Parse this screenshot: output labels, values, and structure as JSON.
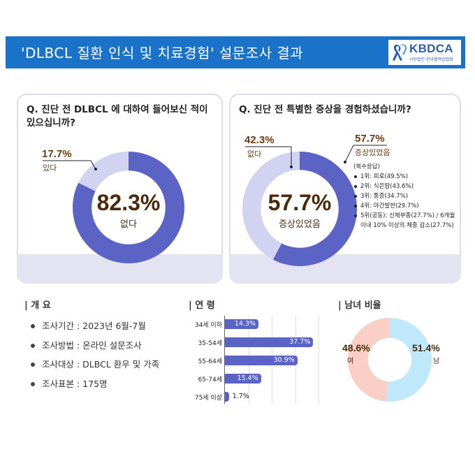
{
  "header": {
    "title": "'DLBCL 질환 인식 및 치료경험' 설문조사 결과"
  },
  "logo": {
    "name": "KBDCA",
    "sub": "사단법인 한국혈액암협회"
  },
  "colors": {
    "header": "#1a73c8",
    "primary": "#5b63c4",
    "secondary": "#d2d3f1",
    "female": "#f9cfc6",
    "male": "#bfe8fb",
    "value_text": "#4b2a0a"
  },
  "q1": {
    "question": "Q. 진단 전 DLBCL 에 대하여 들어보신 적이 있으십니까?",
    "main_pct": "82.3%",
    "main_label": "없다",
    "minor_pct": "17.7%",
    "minor_label": "있다"
  },
  "q2": {
    "question": "Q. 진단 전 특별한 증상을 경험하셨습니까?",
    "main_pct": "57.7%",
    "main_label": "증상있었음",
    "callout_pct": "57.7%",
    "callout_label": "증상있었음",
    "minor_pct": "42.3%",
    "minor_label": "없다",
    "multi_note": "(복수응답)",
    "symptoms": [
      "1위: 피로(49.5%)",
      "2위: 식은땀(43.6%)",
      "3위: 통증(34.7%)",
      "4위: 야간발한(29.7%)",
      "5위(공동): 신체부종(27.7%) / 6개월 이내 10% 이상의 체중 감소(27.7%)"
    ]
  },
  "overview": {
    "heading": "| 개 요",
    "items": [
      "조사기간 : 2023년 6월-7월",
      "조사방법 : 온라인 설문조사",
      "조사대상 : DLBCL 환우 및 가족",
      "조사표본 : 175명"
    ]
  },
  "age": {
    "heading": "| 연 령"
  },
  "gender": {
    "heading": "| 남녀 비율"
  },
  "chart_data": [
    {
      "type": "pie",
      "categories": [
        "없다",
        "있다"
      ],
      "values": [
        82.3,
        17.7
      ]
    },
    {
      "type": "pie",
      "categories": [
        "증상있었음",
        "없다"
      ],
      "values": [
        57.7,
        42.3
      ]
    },
    {
      "type": "bar",
      "orientation": "horizontal",
      "title": "| 연 령",
      "categories": [
        "34세 이하",
        "35-54세",
        "55-64세",
        "65-74세",
        "75세 이상"
      ],
      "values": [
        14.3,
        37.7,
        30.9,
        15.4,
        1.7
      ],
      "value_labels": [
        "14.3%",
        "37.7%",
        "30.9%",
        "15.4%",
        "1.7%"
      ],
      "xlim": [
        0,
        40
      ],
      "grid": true
    },
    {
      "type": "pie",
      "title": "| 남녀 비율",
      "categories": [
        "남",
        "여"
      ],
      "values": [
        51.4,
        48.6
      ],
      "value_labels": [
        "51.4%",
        "48.6%"
      ]
    }
  ]
}
